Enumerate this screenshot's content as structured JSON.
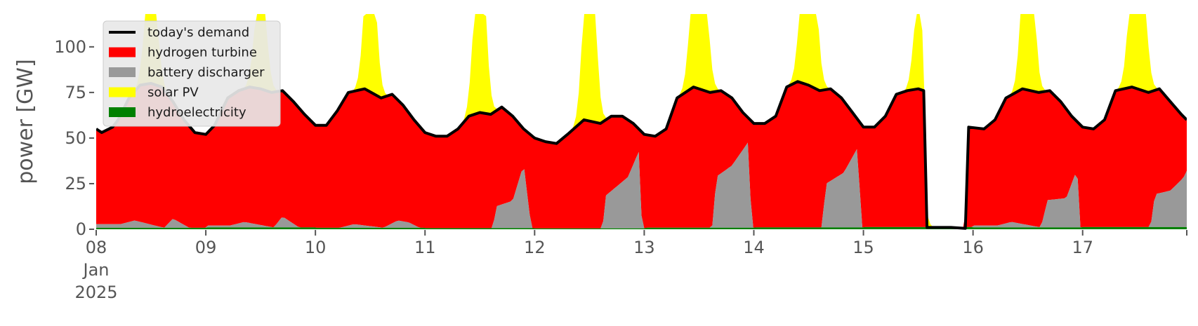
{
  "chart_data": {
    "type": "area",
    "title": "",
    "xlabel": "",
    "ylabel": "power [GW]",
    "x_unit": "day",
    "x_ticks": [
      {
        "x": 0,
        "label": "08",
        "sublabels": [
          "Jan",
          "2025"
        ]
      },
      {
        "x": 1,
        "label": "09"
      },
      {
        "x": 2,
        "label": "10"
      },
      {
        "x": 3,
        "label": "11"
      },
      {
        "x": 4,
        "label": "12"
      },
      {
        "x": 5,
        "label": "13"
      },
      {
        "x": 6,
        "label": "14"
      },
      {
        "x": 7,
        "label": "15"
      },
      {
        "x": 8,
        "label": "16"
      },
      {
        "x": 9,
        "label": "17"
      }
    ],
    "y_ticks": [
      0,
      25,
      50,
      75,
      100
    ],
    "ylim": [
      0,
      118
    ],
    "xlim": [
      0,
      9.95
    ],
    "grid": false,
    "stacked": true,
    "legend_position": "top-left",
    "legend": [
      {
        "name": "today's demand",
        "type": "line",
        "color": "#000000"
      },
      {
        "name": "hydrogen turbine",
        "type": "patch",
        "color": "#ff0000"
      },
      {
        "name": "battery discharger",
        "type": "patch",
        "color": "#999999"
      },
      {
        "name": "solar PV",
        "type": "patch",
        "color": "#ffff00"
      },
      {
        "name": "hydroelectricity",
        "type": "patch",
        "color": "#008000"
      }
    ],
    "stack_order": [
      "hydroelectricity",
      "battery discharger",
      "hydrogen turbine",
      "solar PV"
    ],
    "daily": [
      {
        "day": 0,
        "peak": 70,
        "wide": 0.07,
        "hyd": 0.8,
        "bat": [
          [
            0.22,
            2
          ],
          [
            0.35,
            4
          ],
          [
            0.62,
            0
          ],
          [
            0.7,
            5
          ],
          [
            0.85,
            0
          ]
        ]
      },
      {
        "day": 1,
        "peak": 62,
        "wide": 0.07,
        "hyd": 1.0,
        "bat": [
          [
            0.22,
            1
          ],
          [
            0.35,
            3
          ],
          [
            0.62,
            0
          ],
          [
            0.7,
            6
          ],
          [
            0.85,
            0
          ]
        ]
      },
      {
        "day": 2,
        "peak": 88,
        "wide": 0.07,
        "hyd": 0.8,
        "bat": [
          [
            0.22,
            0
          ],
          [
            0.35,
            2
          ],
          [
            0.62,
            0
          ],
          [
            0.75,
            4
          ],
          [
            0.85,
            3
          ],
          [
            0.95,
            0
          ]
        ]
      },
      {
        "day": 3,
        "peak": 104,
        "wide": 0.07,
        "hyd": 0.6,
        "bat": [
          [
            0.22,
            0
          ],
          [
            0.62,
            0
          ],
          [
            0.65,
            12
          ],
          [
            0.8,
            15
          ],
          [
            0.9,
            35
          ],
          [
            0.97,
            0
          ]
        ]
      },
      {
        "day": 4,
        "peak": 119,
        "wide": 0.07,
        "hyd": 0.5,
        "bat": [
          [
            0.22,
            0
          ],
          [
            0.62,
            0
          ],
          [
            0.65,
            18
          ],
          [
            0.85,
            28
          ],
          [
            0.95,
            42
          ],
          [
            0.98,
            0
          ]
        ]
      },
      {
        "day": 5,
        "peak": 125,
        "wide": 0.08,
        "hyd": 0.9,
        "bat": [
          [
            0.22,
            0
          ],
          [
            0.62,
            0
          ],
          [
            0.66,
            28
          ],
          [
            0.8,
            34
          ],
          [
            0.95,
            47
          ],
          [
            0.98,
            0
          ]
        ]
      },
      {
        "day": 6,
        "peak": 125,
        "wide": 0.08,
        "hyd": 1.0,
        "bat": [
          [
            0.22,
            0
          ],
          [
            0.62,
            0
          ],
          [
            0.66,
            24
          ],
          [
            0.82,
            30
          ],
          [
            0.95,
            44
          ],
          [
            0.98,
            0
          ]
        ]
      },
      {
        "day": 7,
        "peak": 48,
        "wide": 0.06,
        "hyd": 1.2,
        "bat": [
          [
            0.22,
            0
          ],
          [
            0.62,
            0
          ]
        ]
      },
      {
        "day": 8,
        "peak": 112,
        "wide": 0.07,
        "hyd": 1.0,
        "bat": [
          [
            0.22,
            1
          ],
          [
            0.35,
            3
          ],
          [
            0.62,
            0
          ],
          [
            0.68,
            15
          ],
          [
            0.85,
            16
          ],
          [
            0.95,
            32
          ],
          [
            0.98,
            0
          ]
        ]
      },
      {
        "day": 9,
        "peak": 125,
        "wide": 0.08,
        "hyd": 1.2,
        "bat": [
          [
            0.22,
            0
          ],
          [
            0.62,
            0
          ],
          [
            0.66,
            18
          ],
          [
            0.8,
            20
          ],
          [
            0.92,
            27
          ],
          [
            0.99,
            36
          ]
        ]
      }
    ],
    "demand": [
      [
        0.0,
        55
      ],
      [
        0.05,
        53
      ],
      [
        0.15,
        56
      ],
      [
        0.2,
        60
      ],
      [
        0.3,
        72
      ],
      [
        0.4,
        79
      ],
      [
        0.5,
        80
      ],
      [
        0.6,
        78
      ],
      [
        0.7,
        70
      ],
      [
        0.8,
        60
      ],
      [
        0.9,
        53
      ],
      [
        1.0,
        52
      ],
      [
        1.08,
        57
      ],
      [
        1.2,
        72
      ],
      [
        1.3,
        76
      ],
      [
        1.4,
        78
      ],
      [
        1.5,
        77
      ],
      [
        1.6,
        75
      ],
      [
        1.7,
        76
      ],
      [
        1.8,
        70
      ],
      [
        1.9,
        63
      ],
      [
        2.0,
        57
      ],
      [
        2.1,
        57
      ],
      [
        2.2,
        65
      ],
      [
        2.3,
        75
      ],
      [
        2.45,
        77
      ],
      [
        2.6,
        72
      ],
      [
        2.7,
        74
      ],
      [
        2.8,
        68
      ],
      [
        2.9,
        60
      ],
      [
        3.0,
        53
      ],
      [
        3.1,
        51
      ],
      [
        3.2,
        51
      ],
      [
        3.3,
        55
      ],
      [
        3.4,
        62
      ],
      [
        3.5,
        64
      ],
      [
        3.6,
        63
      ],
      [
        3.7,
        67
      ],
      [
        3.8,
        62
      ],
      [
        3.9,
        55
      ],
      [
        4.0,
        50
      ],
      [
        4.1,
        48
      ],
      [
        4.2,
        47
      ],
      [
        4.3,
        52
      ],
      [
        4.45,
        60
      ],
      [
        4.6,
        58
      ],
      [
        4.7,
        62
      ],
      [
        4.8,
        62
      ],
      [
        4.9,
        58
      ],
      [
        5.0,
        52
      ],
      [
        5.1,
        51
      ],
      [
        5.2,
        55
      ],
      [
        5.3,
        72
      ],
      [
        5.45,
        78
      ],
      [
        5.6,
        75
      ],
      [
        5.7,
        76
      ],
      [
        5.8,
        72
      ],
      [
        5.9,
        64
      ],
      [
        6.0,
        58
      ],
      [
        6.1,
        58
      ],
      [
        6.2,
        62
      ],
      [
        6.3,
        78
      ],
      [
        6.4,
        81
      ],
      [
        6.5,
        79
      ],
      [
        6.6,
        76
      ],
      [
        6.7,
        77
      ],
      [
        6.8,
        72
      ],
      [
        6.9,
        64
      ],
      [
        7.0,
        56
      ],
      [
        7.1,
        56
      ],
      [
        7.2,
        62
      ],
      [
        7.3,
        74
      ],
      [
        7.4,
        76
      ],
      [
        7.5,
        77
      ],
      [
        7.55,
        76
      ],
      [
        7.58,
        1
      ],
      [
        7.7,
        1
      ],
      [
        7.8,
        1
      ],
      [
        7.93,
        0.5
      ],
      [
        7.96,
        56
      ],
      [
        8.1,
        55
      ],
      [
        8.2,
        60
      ],
      [
        8.3,
        72
      ],
      [
        8.45,
        77
      ],
      [
        8.6,
        75
      ],
      [
        8.7,
        76
      ],
      [
        8.8,
        70
      ],
      [
        8.9,
        62
      ],
      [
        9.0,
        56
      ],
      [
        9.1,
        55
      ],
      [
        9.2,
        60
      ],
      [
        9.3,
        76
      ],
      [
        9.45,
        78
      ],
      [
        9.6,
        75
      ],
      [
        9.7,
        77
      ],
      [
        9.8,
        70
      ],
      [
        9.9,
        63
      ],
      [
        9.95,
        60
      ]
    ]
  }
}
